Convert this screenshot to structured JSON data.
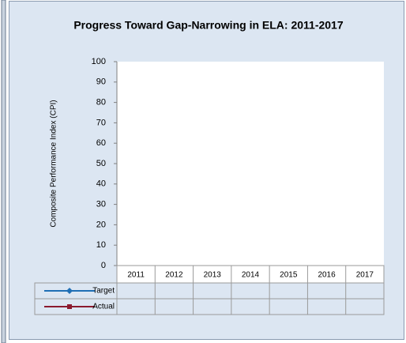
{
  "chart_data": {
    "type": "line",
    "title": "Progress Toward Gap-Narrowing in ELA: 2011-2017",
    "y_label": "Composite Performance Index (CPI)",
    "categories": [
      "2011",
      "2012",
      "2013",
      "2014",
      "2015",
      "2016",
      "2017"
    ],
    "series": [
      {
        "name": "Target",
        "color": "#1f6fb5",
        "marker": "diamond",
        "values": [
          null,
          null,
          null,
          null,
          null,
          null,
          null
        ]
      },
      {
        "name": "Actual",
        "color": "#8b1a2e",
        "marker": "square",
        "values": [
          null,
          null,
          null,
          null,
          null,
          null,
          null
        ]
      }
    ],
    "ylim": [
      0,
      100
    ],
    "yticks": [
      0,
      10,
      20,
      30,
      40,
      50,
      60,
      70,
      80,
      90,
      100
    ],
    "data_table": true
  }
}
